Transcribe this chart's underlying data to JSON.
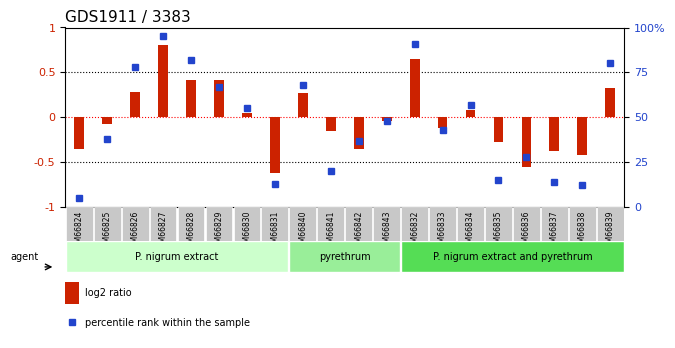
{
  "title": "GDS1911 / 3383",
  "samples": [
    "GSM66824",
    "GSM66825",
    "GSM66826",
    "GSM66827",
    "GSM66828",
    "GSM66829",
    "GSM66830",
    "GSM66831",
    "GSM66840",
    "GSM66841",
    "GSM66842",
    "GSM66843",
    "GSM66832",
    "GSM66833",
    "GSM66834",
    "GSM66835",
    "GSM66836",
    "GSM66837",
    "GSM66838",
    "GSM66839"
  ],
  "log2_ratio": [
    -0.35,
    -0.08,
    0.28,
    0.8,
    0.42,
    0.41,
    0.05,
    -0.62,
    0.27,
    -0.15,
    -0.35,
    -0.04,
    0.65,
    -0.12,
    0.08,
    -0.28,
    -0.55,
    -0.38,
    -0.42,
    0.32
  ],
  "percentile": [
    5,
    38,
    78,
    95,
    82,
    67,
    55,
    13,
    68,
    20,
    37,
    48,
    91,
    43,
    57,
    15,
    28,
    14,
    12,
    80
  ],
  "groups": [
    {
      "label": "P. nigrum extract",
      "start": 0,
      "end": 8,
      "color": "#ccffcc"
    },
    {
      "label": "pyrethrum",
      "start": 8,
      "end": 12,
      "color": "#99ee99"
    },
    {
      "label": "P. nigrum extract and pyrethrum",
      "start": 12,
      "end": 20,
      "color": "#55dd55"
    }
  ],
  "bar_color": "#cc2200",
  "dot_color": "#2244cc",
  "ylabel_left": "",
  "ylabel_right": "",
  "ylim_left": [
    -1,
    1
  ],
  "ylim_right": [
    0,
    100
  ],
  "yticks_left": [
    -1,
    -0.5,
    0,
    0.5,
    1
  ],
  "ytick_labels_left": [
    "-1",
    "-0.5",
    "0",
    "0.5",
    "1"
  ],
  "yticks_right": [
    0,
    25,
    50,
    75,
    100
  ],
  "ytick_labels_right": [
    "0",
    "25",
    "50",
    "75",
    "100%"
  ],
  "hlines": [
    0.5,
    0,
    -0.5
  ],
  "bg_color": "#ffffff",
  "agent_label": "agent"
}
